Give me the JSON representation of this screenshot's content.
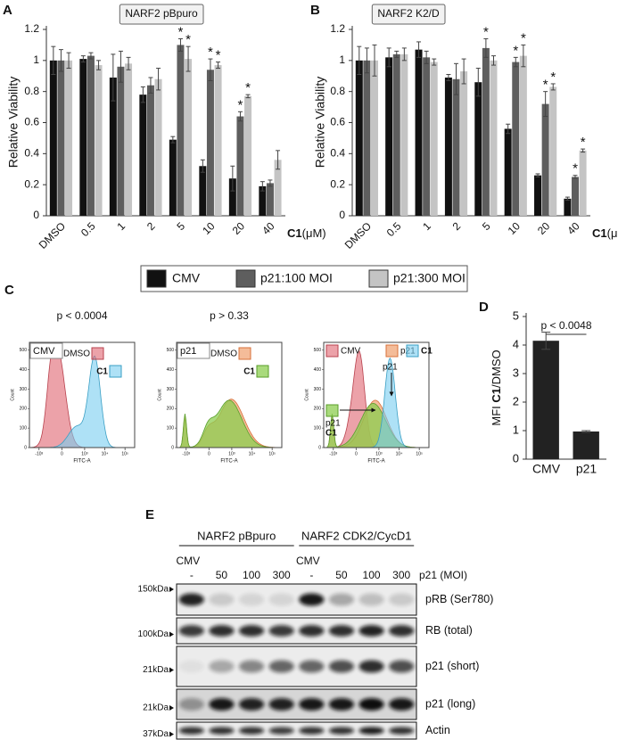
{
  "panel_labels": [
    "A",
    "B",
    "C",
    "D",
    "E"
  ],
  "chart_data": [
    {
      "type": "bar",
      "title": "NARF2 pBpuro",
      "y_label": "Relative Viability",
      "x_label_bold": "C1",
      "x_label": "(μM)",
      "categories": [
        "DMSO",
        "0.5",
        "1",
        "2",
        "5",
        "10",
        "20",
        "40"
      ],
      "series": [
        {
          "name": "CMV",
          "color": "#111111",
          "values": [
            1.0,
            1.01,
            0.89,
            0.78,
            0.49,
            0.32,
            0.24,
            0.19
          ],
          "errors": [
            0.09,
            0.02,
            0.15,
            0.05,
            0.02,
            0.04,
            0.08,
            0.03
          ],
          "annotations": [
            null,
            null,
            null,
            null,
            null,
            null,
            null,
            null
          ]
        },
        {
          "name": "p21:100 MOI",
          "color": "#5e5e5e",
          "values": [
            1.0,
            1.03,
            0.96,
            0.84,
            1.1,
            0.94,
            0.64,
            0.21
          ],
          "errors": [
            0.07,
            0.02,
            0.1,
            0.05,
            0.04,
            0.07,
            0.03,
            0.02
          ],
          "annotations": [
            null,
            null,
            null,
            null,
            "*",
            "*",
            "*",
            null
          ]
        },
        {
          "name": "p21:300 MOI",
          "color": "#c4c4c4",
          "values": [
            1.0,
            0.97,
            0.98,
            0.88,
            1.01,
            0.97,
            0.77,
            0.36
          ],
          "errors": [
            0.05,
            0.03,
            0.04,
            0.07,
            0.08,
            0.02,
            0.01,
            0.06
          ],
          "annotations": [
            null,
            null,
            null,
            null,
            "*",
            "*",
            "*",
            null
          ]
        }
      ],
      "ylim": [
        0,
        1.2
      ],
      "yticks": [
        0,
        0.2,
        0.4,
        0.6,
        0.8,
        1,
        1.2
      ]
    },
    {
      "type": "bar",
      "title": "NARF2 K2/D",
      "y_label": "Relative Viability",
      "x_label_bold": "C1",
      "x_label": "(μM)",
      "categories": [
        "DMSO",
        "0.5",
        "1",
        "2",
        "5",
        "10",
        "20",
        "40"
      ],
      "series": [
        {
          "color": "#111111",
          "values": [
            1.0,
            1.02,
            1.07,
            0.89,
            0.86,
            0.56,
            0.26,
            0.11
          ],
          "errors": [
            0.09,
            0.06,
            0.05,
            0.02,
            0.09,
            0.03,
            0.01,
            0.01
          ],
          "annotations": [
            null,
            null,
            null,
            null,
            null,
            null,
            null,
            null
          ]
        },
        {
          "color": "#5e5e5e",
          "values": [
            1.0,
            1.04,
            1.02,
            0.88,
            1.08,
            0.99,
            0.72,
            0.25
          ],
          "errors": [
            0.08,
            0.02,
            0.04,
            0.1,
            0.06,
            0.03,
            0.08,
            0.01
          ],
          "annotations": [
            null,
            null,
            null,
            null,
            "*",
            "*",
            "*",
            "*"
          ]
        },
        {
          "color": "#c4c4c4",
          "values": [
            1.0,
            1.04,
            0.99,
            0.93,
            1.0,
            1.03,
            0.83,
            0.42
          ],
          "errors": [
            0.1,
            0.04,
            0.02,
            0.08,
            0.03,
            0.07,
            0.02,
            0.01
          ],
          "annotations": [
            null,
            null,
            null,
            null,
            null,
            "*",
            "*",
            "*"
          ]
        }
      ],
      "ylim": [
        0,
        1.2
      ],
      "yticks": [
        0,
        0.2,
        0.4,
        0.6,
        0.8,
        1,
        1.2
      ]
    },
    {
      "type": "bar",
      "y_label_parts": [
        "MFI ",
        "C1",
        "/DMSO"
      ],
      "annotation": "p < 0.0048",
      "categories": [
        "CMV",
        "p21"
      ],
      "values": [
        4.15,
        0.97
      ],
      "errors": [
        0.3,
        0.03
      ],
      "color": "#222222",
      "ylim": [
        0,
        5
      ],
      "yticks": [
        0,
        1,
        2,
        3,
        4,
        5
      ]
    }
  ],
  "flow": {
    "y_label": "Count",
    "x_label": "FITC-A",
    "ylim": [
      0,
      540
    ],
    "yticks": [
      0,
      100,
      200,
      300,
      400,
      500
    ],
    "xlim": [
      -3000,
      300000
    ],
    "xticks": [
      {
        "value": -1000,
        "label": "-10³"
      },
      0,
      {
        "value": 1000,
        "label": "10³"
      },
      {
        "value": 10000,
        "label": "10⁴"
      },
      {
        "value": 100000,
        "label": "10⁵"
      }
    ],
    "plots": [
      {
        "title": "p < 0.0004",
        "sample": "CMV",
        "legend": [
          "DMSO",
          "C1"
        ]
      },
      {
        "title": "p > 0.33",
        "sample": "p21",
        "legend": [
          "DMSO",
          "C1"
        ]
      },
      {
        "legend": [
          "CMV",
          "p21",
          "C1",
          "p21",
          "C1"
        ]
      }
    ]
  },
  "blot": {
    "groups": [
      {
        "name": "NARF2 pBpuro",
        "control": "CMV",
        "lanes": [
          "-",
          "50",
          "100",
          "300"
        ]
      },
      {
        "name": "NARF2 CDK2/CycD1",
        "control": "CMV",
        "lanes": [
          "-",
          "50",
          "100",
          "300"
        ]
      }
    ],
    "lane_title": "p21 (MOI)",
    "rows": [
      {
        "marker": "150kDa",
        "label": "pRB (Ser780)"
      },
      {
        "marker": "100kDa",
        "label": "RB (total)"
      },
      {
        "marker": "21kDa",
        "label": "p21 (short)"
      },
      {
        "marker": "21kDa",
        "label": "p21 (long)"
      },
      {
        "marker": "37kDa",
        "label": "Actin"
      }
    ]
  }
}
